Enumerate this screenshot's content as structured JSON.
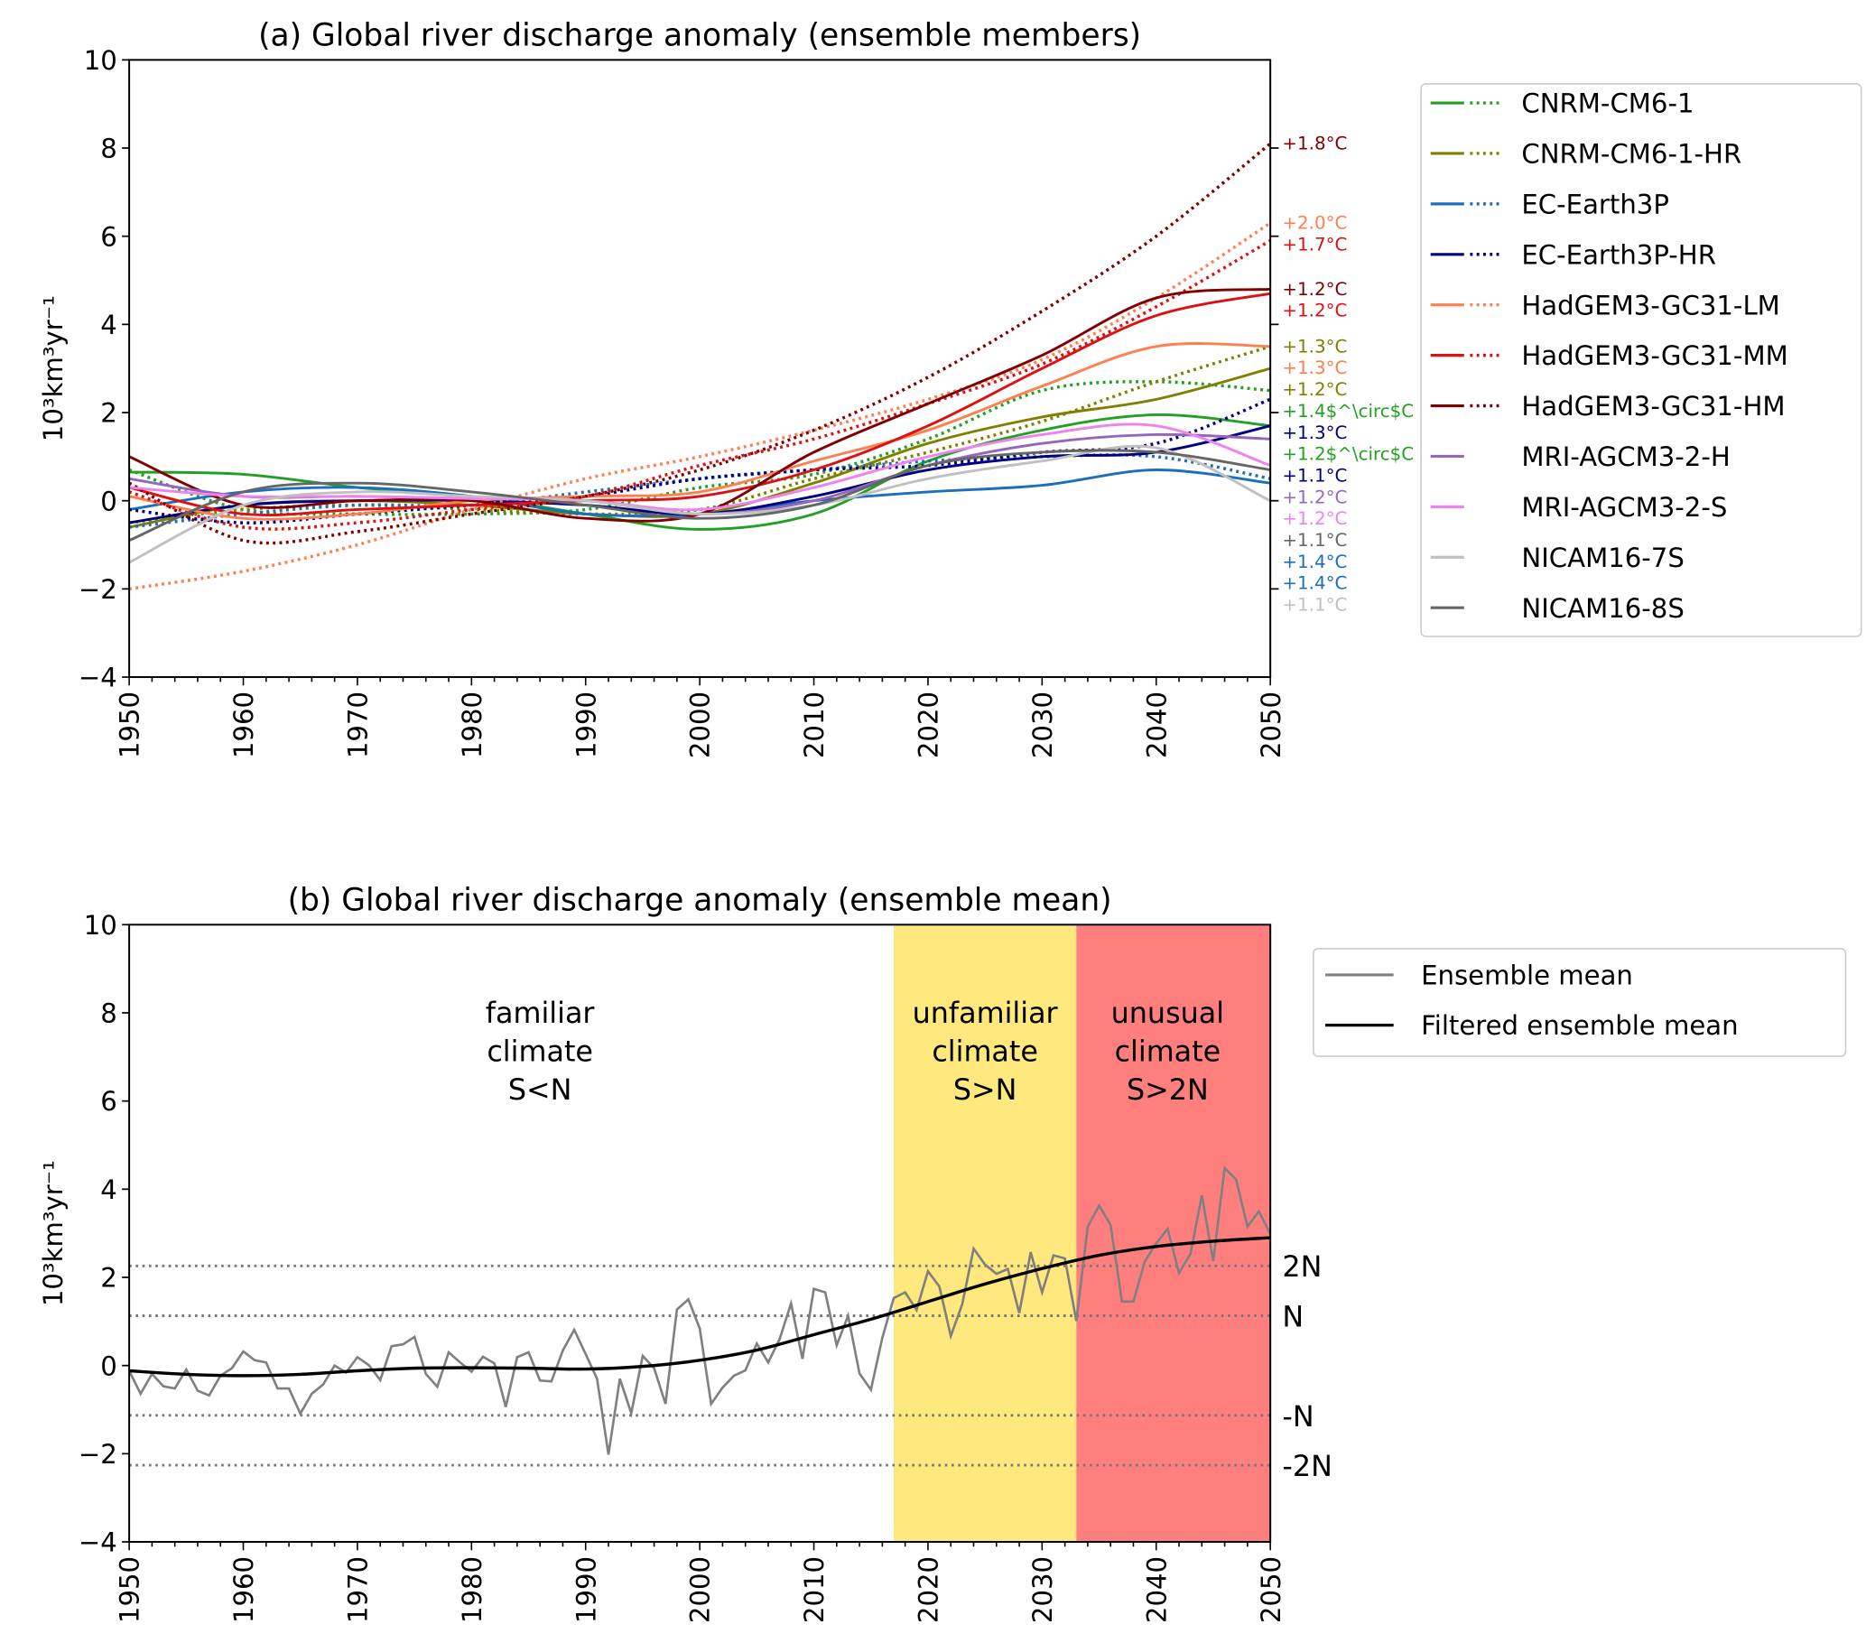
{
  "chart_data": [
    {
      "type": "line",
      "title": "(a) Global river discharge anomaly (ensemble members)",
      "ylabel": "10³km³yr⁻¹",
      "xlabel": "",
      "xlim": [
        1950,
        2050
      ],
      "ylim": [
        -4,
        10
      ],
      "xticks": [
        "1950",
        "1960",
        "1970",
        "1980",
        "1990",
        "2000",
        "2010",
        "2020",
        "2030",
        "2040",
        "2050"
      ],
      "yticks": [
        "−4",
        "−2",
        "0",
        "2",
        "4",
        "6",
        "8",
        "10"
      ],
      "grid": false,
      "legend_position": "outside-right",
      "x": [
        1950,
        1960,
        1970,
        1980,
        1990,
        2000,
        2010,
        2020,
        2030,
        2040,
        2050
      ],
      "models": [
        {
          "name": "CNRM-CM6-1",
          "color": "#22a022",
          "solid": [
            0.65,
            0.6,
            0.3,
            0.1,
            -0.3,
            -0.65,
            -0.3,
            0.9,
            1.6,
            1.95,
            1.7
          ],
          "dotted": [
            0.7,
            -0.2,
            -0.3,
            -0.3,
            -0.2,
            0.3,
            0.6,
            1.4,
            2.5,
            2.7,
            2.5
          ],
          "solid_label": "+1.2$^\\circ$C",
          "dotted_label": "+1.4$^\\circ$C"
        },
        {
          "name": "CNRM-CM6-1-HR",
          "color": "#808000",
          "solid": [
            -0.6,
            -0.1,
            0,
            -0.1,
            -0.3,
            -0.3,
            0.4,
            1.3,
            1.9,
            2.3,
            3.0
          ],
          "dotted": [
            -0.5,
            -0.2,
            -0.1,
            -0.2,
            -0.3,
            -0.2,
            0.5,
            1.1,
            1.8,
            2.7,
            3.5
          ],
          "solid_label": "+1.2°C",
          "dotted_label": "+1.3°C"
        },
        {
          "name": "EC-Earth3P",
          "color": "#1a6fbf",
          "solid": [
            -0.2,
            0.2,
            0.3,
            0.1,
            -0.3,
            -0.3,
            0,
            0.2,
            0.35,
            0.7,
            0.4
          ],
          "dotted": [
            -0.6,
            -0.3,
            -0.1,
            -0.1,
            0.2,
            0.5,
            0.7,
            0.9,
            1.0,
            1.0,
            0.5
          ],
          "solid_label": "+1.4°C",
          "dotted_label": "+1.4°C"
        },
        {
          "name": "EC-Earth3P-HR",
          "color": "#000080",
          "solid": [
            -0.5,
            -0.1,
            0,
            0,
            -0.1,
            -0.3,
            0.1,
            0.7,
            1.0,
            1.1,
            1.7
          ],
          "dotted": [
            -0.2,
            -0.5,
            -0.3,
            -0.1,
            0.1,
            0.5,
            0.7,
            0.8,
            1.1,
            1.3,
            2.3
          ],
          "solid_label": "+1.1°C",
          "dotted_label": "+1.3°C"
        },
        {
          "name": "HadGEM3-GC31-LM",
          "color": "#ff7f50",
          "solid": [
            0.1,
            -0.4,
            -0.3,
            0,
            0.1,
            0.2,
            0.9,
            1.6,
            2.6,
            3.5,
            3.5
          ],
          "dotted": [
            -2.0,
            -1.6,
            -1.0,
            -0.2,
            0.5,
            1.0,
            1.6,
            2.3,
            3.2,
            4.6,
            6.3
          ],
          "solid_label": "+1.3°C",
          "dotted_label": "+2.0°C"
        },
        {
          "name": "HadGEM3-GC31-MM",
          "color": "#dd1111",
          "solid": [
            0.3,
            -0.3,
            -0.2,
            -0.1,
            0,
            0.1,
            0.7,
            1.7,
            3.0,
            4.2,
            4.7
          ],
          "dotted": [
            0.2,
            -0.6,
            -0.5,
            -0.2,
            0.1,
            0.8,
            1.4,
            2.2,
            3.1,
            4.4,
            5.9
          ],
          "solid_label": "+1.2°C",
          "dotted_label": "+1.7°C"
        },
        {
          "name": "HadGEM3-GC31-HM",
          "color": "#800000",
          "solid": [
            1.0,
            -0.1,
            0,
            0,
            -0.4,
            -0.3,
            1.1,
            2.2,
            3.3,
            4.6,
            4.8
          ],
          "dotted": [
            0.4,
            -0.9,
            -0.7,
            -0.3,
            0.1,
            0.7,
            1.6,
            2.8,
            4.3,
            6.0,
            8.1
          ],
          "solid_label": "+1.2°C",
          "dotted_label": "+1.8°C"
        },
        {
          "name": "MRI-AGCM3-2-H",
          "color": "#9467bd",
          "solid": [
            0.5,
            0.1,
            0.1,
            0.05,
            0,
            -0.3,
            0,
            0.8,
            1.3,
            1.5,
            1.4
          ],
          "solid_label": "+1.2°C"
        },
        {
          "name": "MRI-AGCM3-2-S",
          "color": "#ee82ee",
          "solid": [
            0.3,
            0.1,
            0.1,
            0.05,
            0,
            -0.2,
            0.3,
            1.0,
            1.5,
            1.7,
            0.8
          ],
          "solid_label": "+1.2°C"
        },
        {
          "name": "NICAM16-7S",
          "color": "#c0c0c0",
          "solid": [
            -1.4,
            -0.1,
            0.2,
            0.1,
            0,
            -0.3,
            -0.1,
            0.5,
            0.9,
            1.2,
            0
          ],
          "solid_label": "+1.1°C"
        },
        {
          "name": "NICAM16-8S",
          "color": "#666666",
          "solid": [
            -0.9,
            0.2,
            0.4,
            0.2,
            -0.1,
            -0.4,
            -0.1,
            0.8,
            1.1,
            1.1,
            0.7
          ],
          "solid_label": "+1.1°C"
        }
      ]
    },
    {
      "type": "line",
      "title": "(b) Global river discharge anomaly (ensemble mean)",
      "ylabel": "10³km³yr⁻¹",
      "xlabel": "",
      "xlim": [
        1950,
        2050
      ],
      "ylim": [
        -4,
        10
      ],
      "xticks": [
        "1950",
        "1960",
        "1970",
        "1980",
        "1990",
        "2000",
        "2010",
        "2020",
        "2030",
        "2040",
        "2050"
      ],
      "yticks": [
        "−4",
        "−2",
        "0",
        "2",
        "4",
        "6",
        "8",
        "10"
      ],
      "grid": false,
      "legend_position": "outside-right",
      "series": [
        {
          "name": "Ensemble mean",
          "color": "#808080",
          "x_start": 1950,
          "values": [
            -0.12,
            -0.64,
            -0.19,
            -0.47,
            -0.52,
            -0.09,
            -0.57,
            -0.68,
            -0.23,
            -0.06,
            0.32,
            0.12,
            0.07,
            -0.52,
            -0.52,
            -1.09,
            -0.64,
            -0.43,
            0,
            -0.16,
            0.19,
            0.01,
            -0.33,
            0.44,
            0.48,
            0.65,
            -0.19,
            -0.48,
            0.3,
            0.07,
            -0.14,
            0.2,
            0.05,
            -0.94,
            0.19,
            0.3,
            -0.34,
            -0.36,
            0.34,
            0.81,
            0.26,
            -0.3,
            -2.02,
            -0.3,
            -1.08,
            0.22,
            -0.06,
            -0.87,
            1.27,
            1.5,
            0.84,
            -0.87,
            -0.5,
            -0.23,
            -0.11,
            0.5,
            0.07,
            0.6,
            1.41,
            0.15,
            1.74,
            1.66,
            0.46,
            1.13,
            -0.18,
            -0.55,
            0.63,
            1.53,
            1.66,
            1.26,
            2.14,
            1.79,
            0.67,
            1.39,
            2.65,
            2.29,
            2.08,
            2.19,
            1.19,
            2.57,
            1.66,
            2.5,
            2.43,
            1.01,
            3.15,
            3.63,
            3.19,
            1.45,
            1.45,
            2.36,
            2.77,
            3.1,
            2.1,
            2.53,
            3.86,
            2.37,
            4.48,
            4.22,
            3.15,
            3.5,
            2.98
          ]
        },
        {
          "name": "Filtered ensemble mean",
          "color": "#000000",
          "x": [
            1950,
            1955,
            1960,
            1965,
            1970,
            1975,
            1980,
            1985,
            1990,
            1995,
            2000,
            2005,
            2010,
            2015,
            2020,
            2025,
            2030,
            2035,
            2040,
            2045,
            2050
          ],
          "values": [
            -0.12,
            -0.2,
            -0.23,
            -0.2,
            -0.12,
            -0.06,
            -0.05,
            -0.06,
            -0.08,
            -0.02,
            0.12,
            0.35,
            0.7,
            1.05,
            1.45,
            1.85,
            2.2,
            2.5,
            2.7,
            2.82,
            2.9
          ]
        }
      ],
      "thresholds": [
        {
          "label": "2N",
          "value": 2.26
        },
        {
          "label": "N",
          "value": 1.13
        },
        {
          "label": "-N",
          "value": -1.13
        },
        {
          "label": "-2N",
          "value": -2.26
        }
      ],
      "regions": [
        {
          "lines": [
            "familiar",
            "climate",
            "S<N"
          ],
          "from": 1950,
          "to": 2017,
          "color": "#ffffff",
          "label_x": 1986
        },
        {
          "lines": [
            "unfamiliar",
            "climate",
            "S>N"
          ],
          "from": 2017,
          "to": 2033,
          "color": "#ffe97f",
          "label_x": 2025
        },
        {
          "lines": [
            "unusual",
            "climate",
            "S>2N"
          ],
          "from": 2033,
          "to": 2050,
          "color": "#ff7f7f",
          "label_x": 2041
        }
      ]
    }
  ]
}
